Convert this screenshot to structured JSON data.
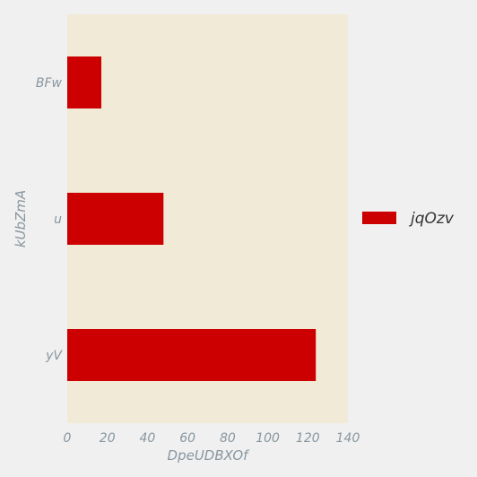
{
  "chart_data": {
    "type": "bar",
    "orientation": "horizontal",
    "categories": [
      "BFw",
      "u",
      "yV"
    ],
    "series": [
      {
        "name": "jqOzv",
        "values": [
          17,
          48,
          124
        ],
        "color": "#cc0000"
      }
    ],
    "xlabel": "DpeUDBXOf",
    "ylabel": "kUbZmA",
    "xlim": [
      0,
      140
    ],
    "xticks": [
      "0",
      "20",
      "40",
      "60",
      "80",
      "100",
      "120",
      "140"
    ],
    "grid": false,
    "legend_position": "right",
    "colors": {
      "page_background": "#f0f0f0",
      "plot_background": "#f0ead6",
      "label_color": "#8896a0"
    }
  }
}
